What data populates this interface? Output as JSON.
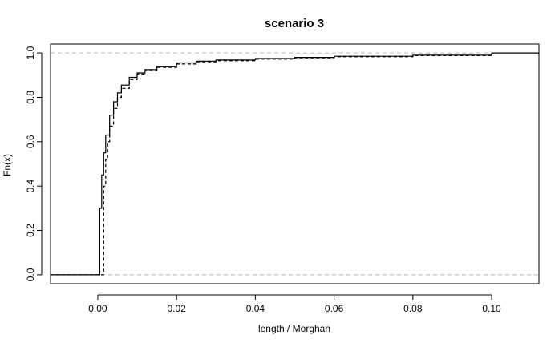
{
  "chart_data": {
    "type": "line",
    "title": "scenario 3",
    "xlabel": "length / Morghan",
    "ylabel": "Fn(x)",
    "xlim": [
      -0.012,
      0.112
    ],
    "ylim": [
      -0.04,
      1.04
    ],
    "x_ticks": [
      0.0,
      0.02,
      0.04,
      0.06,
      0.08,
      0.1
    ],
    "x_tick_labels": [
      "0.00",
      "0.02",
      "0.04",
      "0.06",
      "0.08",
      "0.10"
    ],
    "y_ticks": [
      0.0,
      0.2,
      0.4,
      0.6,
      0.8,
      1.0
    ],
    "y_tick_labels": [
      "0.0",
      "0.2",
      "0.4",
      "0.6",
      "0.8",
      "1.0"
    ],
    "reference_lines": [
      0,
      1
    ],
    "series": [
      {
        "style": "solid",
        "color": "#000000",
        "x": [
          -0.015,
          0.0002,
          0.0005,
          0.001,
          0.0015,
          0.002,
          0.003,
          0.004,
          0.005,
          0.006,
          0.008,
          0.01,
          0.012,
          0.015,
          0.02,
          0.025,
          0.03,
          0.04,
          0.05,
          0.06,
          0.08,
          0.1,
          0.115
        ],
        "y": [
          0.0,
          0.0,
          0.3,
          0.45,
          0.55,
          0.63,
          0.72,
          0.78,
          0.82,
          0.855,
          0.89,
          0.91,
          0.925,
          0.94,
          0.955,
          0.963,
          0.968,
          0.975,
          0.98,
          0.985,
          0.99,
          1.0,
          1.0
        ]
      },
      {
        "style": "dashed",
        "color": "#000000",
        "x": [
          -0.015,
          0.0012,
          0.0015,
          0.002,
          0.0025,
          0.003,
          0.004,
          0.005,
          0.006,
          0.008,
          0.01,
          0.012,
          0.015,
          0.02,
          0.025,
          0.03,
          0.04,
          0.05,
          0.06,
          0.08,
          0.1
        ],
        "y": [
          0.0,
          0.0,
          0.4,
          0.52,
          0.6,
          0.67,
          0.75,
          0.8,
          0.84,
          0.88,
          0.905,
          0.92,
          0.935,
          0.95,
          0.96,
          0.965,
          0.972,
          0.978,
          0.983,
          0.988,
          0.995
        ]
      }
    ]
  }
}
